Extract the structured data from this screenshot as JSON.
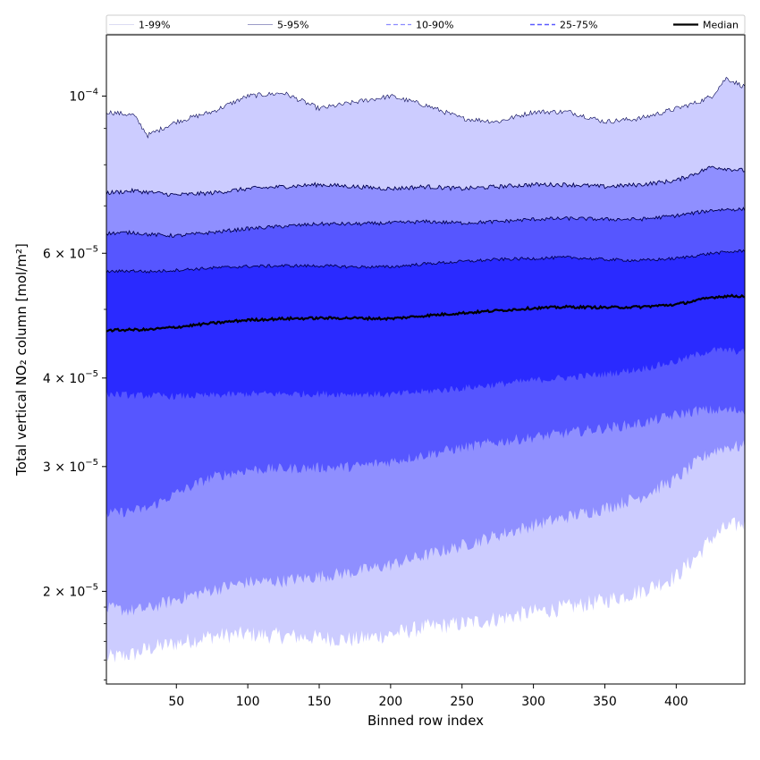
{
  "chart_data": {
    "type": "area",
    "xlabel": "Binned row index",
    "ylabel": "Total vertical NO₂ column [mol/m²]",
    "xlim": [
      1,
      448
    ],
    "ylim": [
      1.48e-05,
      0.000122
    ],
    "yscale": "log",
    "x_ticks": [
      50,
      100,
      150,
      200,
      250,
      300,
      350,
      400
    ],
    "y_ticks": [
      {
        "value": 2e-05,
        "mantissa": "2",
        "exp": "−5"
      },
      {
        "value": 3e-05,
        "mantissa": "3",
        "exp": "−5"
      },
      {
        "value": 4e-05,
        "mantissa": "4",
        "exp": "−5"
      },
      {
        "value": 6e-05,
        "mantissa": "6",
        "exp": "−5"
      },
      {
        "value": 0.0001,
        "mantissa": "10",
        "exp": "−4"
      }
    ],
    "legend_position": "top (above plot, horizontal)",
    "x": [
      1,
      20,
      30,
      50,
      75,
      100,
      125,
      150,
      175,
      200,
      225,
      250,
      275,
      300,
      325,
      350,
      375,
      400,
      415,
      425,
      435,
      448
    ],
    "series": [
      {
        "name": "1-99%",
        "color": "#ccccff",
        "lower": [
          1.61e-05,
          1.63e-05,
          1.66e-05,
          1.69e-05,
          1.73e-05,
          1.74e-05,
          1.73e-05,
          1.72e-05,
          1.71e-05,
          1.74e-05,
          1.78e-05,
          1.8e-05,
          1.83e-05,
          1.87e-05,
          1.9e-05,
          1.94e-05,
          2e-05,
          2.1e-05,
          2.25e-05,
          2.38e-05,
          2.46e-05,
          2.5e-05
        ],
        "upper": [
          9.5e-05,
          9.4e-05,
          8.8e-05,
          9.2e-05,
          9.5e-05,
          0.0001,
          0.000101,
          9.6e-05,
          9.8e-05,
          0.0001,
          9.7e-05,
          9.3e-05,
          9.2e-05,
          9.5e-05,
          9.5e-05,
          9.2e-05,
          9.3e-05,
          9.6e-05,
          9.8e-05,
          0.0001,
          0.000106,
          0.000103
        ]
      },
      {
        "name": "5-95%",
        "color": "#8f8fff",
        "lower": [
          1.89e-05,
          1.88e-05,
          1.89e-05,
          1.95e-05,
          2.01e-05,
          2.06e-05,
          2.07e-05,
          2.1e-05,
          2.13e-05,
          2.18e-05,
          2.25e-05,
          2.32e-05,
          2.4e-05,
          2.48e-05,
          2.55e-05,
          2.62e-05,
          2.72e-05,
          2.88e-05,
          3.05e-05,
          3.15e-05,
          3.2e-05,
          3.2e-05
        ],
        "upper": [
          7.3e-05,
          7.35e-05,
          7.32e-05,
          7.25e-05,
          7.3e-05,
          7.4e-05,
          7.45e-05,
          7.5e-05,
          7.45e-05,
          7.4e-05,
          7.45e-05,
          7.4e-05,
          7.45e-05,
          7.5e-05,
          7.5e-05,
          7.45e-05,
          7.5e-05,
          7.6e-05,
          7.8e-05,
          7.95e-05,
          7.9e-05,
          7.85e-05
        ]
      },
      {
        "name": "10-90%",
        "color": "#5656ff",
        "lower": [
          2.57e-05,
          2.6e-05,
          2.62e-05,
          2.75e-05,
          2.9e-05,
          2.97e-05,
          2.98e-05,
          2.99e-05,
          3e-05,
          3.05e-05,
          3.12e-05,
          3.19e-05,
          3.25e-05,
          3.3e-05,
          3.35e-05,
          3.4e-05,
          3.45e-05,
          3.55e-05,
          3.6e-05,
          3.6e-05,
          3.6e-05,
          3.6e-05
        ],
        "upper": [
          6.4e-05,
          6.42e-05,
          6.38e-05,
          6.35e-05,
          6.42e-05,
          6.5e-05,
          6.55e-05,
          6.6e-05,
          6.6e-05,
          6.62e-05,
          6.65e-05,
          6.62e-05,
          6.65e-05,
          6.7e-05,
          6.72e-05,
          6.7e-05,
          6.7e-05,
          6.78e-05,
          6.85e-05,
          6.9e-05,
          6.92e-05,
          6.92e-05
        ]
      },
      {
        "name": "25-75%",
        "color": "#2a2aff",
        "lower": [
          3.8e-05,
          3.78e-05,
          3.78e-05,
          3.77e-05,
          3.78e-05,
          3.8e-05,
          3.8e-05,
          3.8e-05,
          3.8e-05,
          3.79e-05,
          3.83e-05,
          3.87e-05,
          3.92e-05,
          3.97e-05,
          4.01e-05,
          4.05e-05,
          4.12e-05,
          4.22e-05,
          4.32e-05,
          4.38e-05,
          4.38e-05,
          4.35e-05
        ],
        "upper": [
          5.65e-05,
          5.67e-05,
          5.65e-05,
          5.68e-05,
          5.72e-05,
          5.75e-05,
          5.76e-05,
          5.76e-05,
          5.74e-05,
          5.74e-05,
          5.8e-05,
          5.84e-05,
          5.88e-05,
          5.9e-05,
          5.92e-05,
          5.88e-05,
          5.86e-05,
          5.9e-05,
          5.96e-05,
          6e-05,
          6.02e-05,
          6.05e-05
        ]
      },
      {
        "name": "Median",
        "color": "#000000",
        "values": [
          4.67e-05,
          4.68e-05,
          4.68e-05,
          4.72e-05,
          4.78e-05,
          4.83e-05,
          4.85e-05,
          4.86e-05,
          4.86e-05,
          4.85e-05,
          4.9e-05,
          4.94e-05,
          4.98e-05,
          5.02e-05,
          5.04e-05,
          5.03e-05,
          5.04e-05,
          5.08e-05,
          5.15e-05,
          5.2e-05,
          5.22e-05,
          5.22e-05
        ]
      }
    ],
    "legend": [
      {
        "label": "1-99%",
        "color": "#d0d0ee",
        "dash": "",
        "width": 0.8
      },
      {
        "label": "5-95%",
        "color": "#7a7ab4",
        "dash": "",
        "width": 0.8
      },
      {
        "label": "10-90%",
        "color": "#8a8aff",
        "dash": "5,3",
        "width": 1.3
      },
      {
        "label": "25-75%",
        "color": "#5a5aff",
        "dash": "5,3",
        "width": 1.5
      },
      {
        "label": "Median",
        "color": "#000000",
        "dash": "",
        "width": 2.2
      }
    ]
  }
}
